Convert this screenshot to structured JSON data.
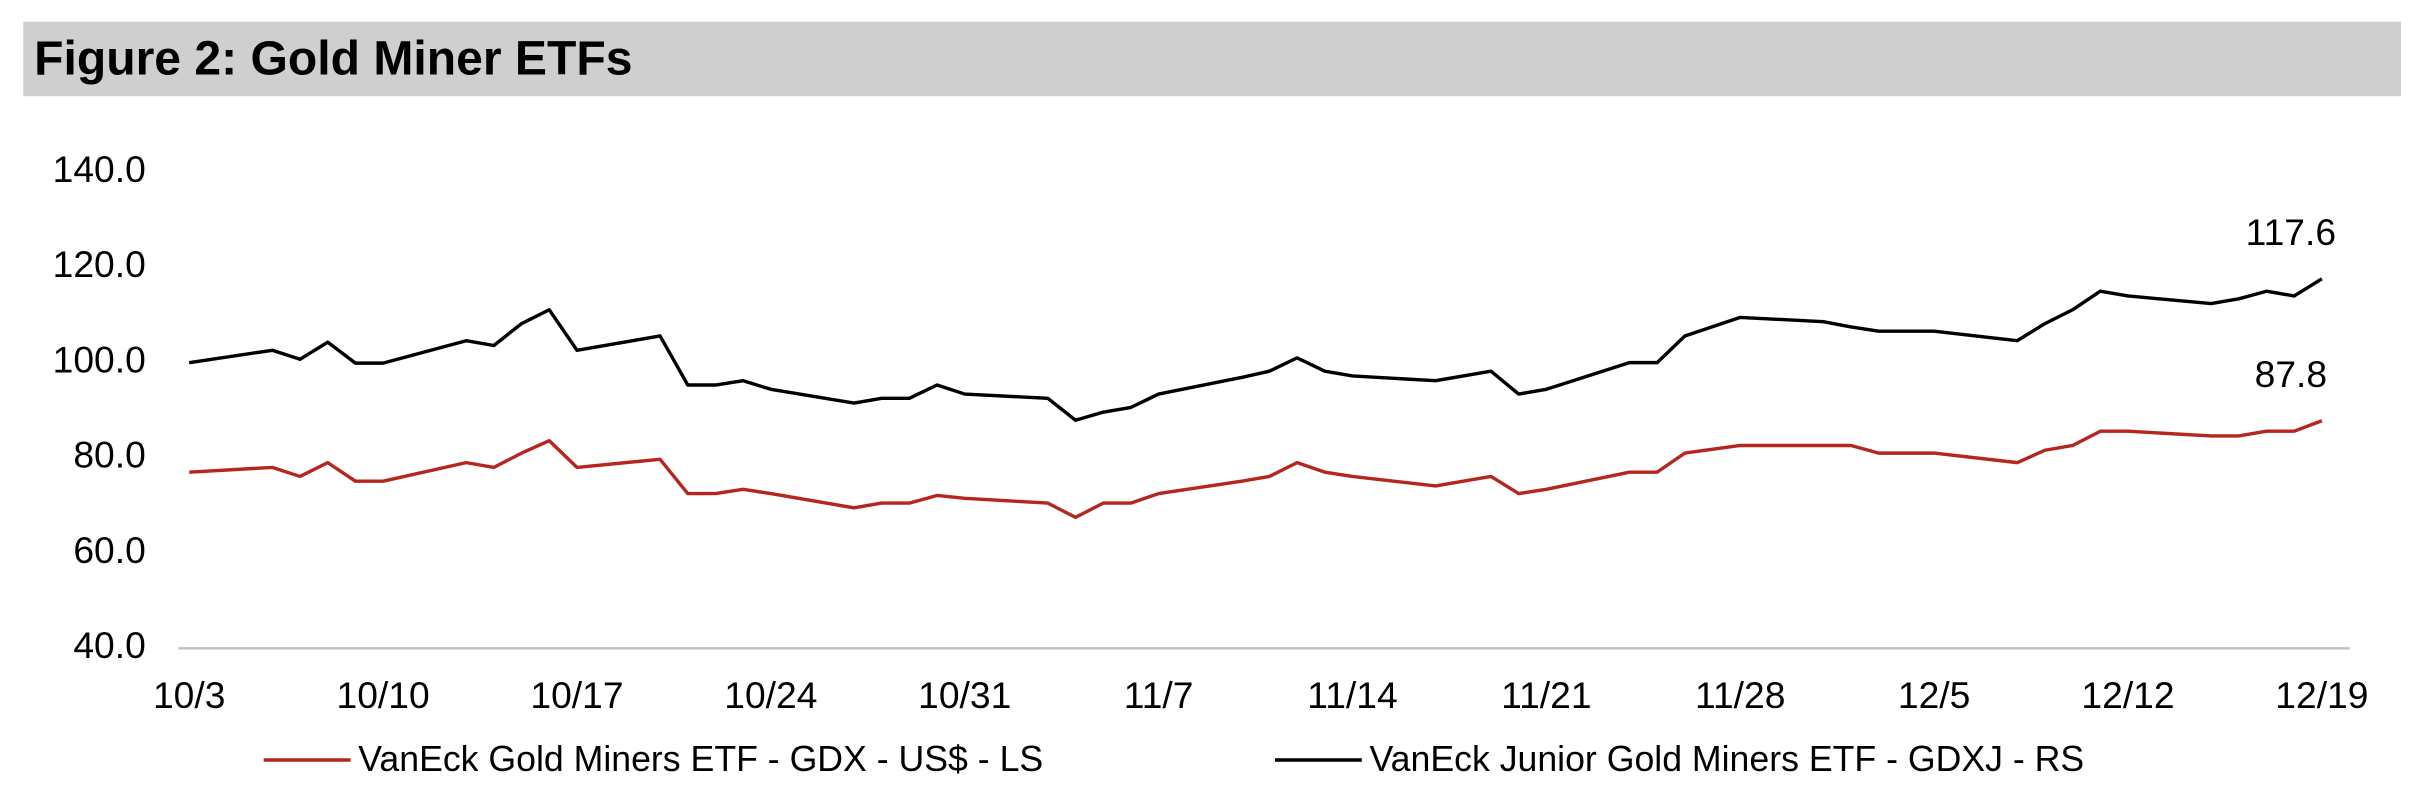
{
  "chart_data": {
    "type": "line",
    "title": "Figure 2: Gold Miner ETFs",
    "x": [
      "10/3",
      "10/6",
      "10/7",
      "10/8",
      "10/9",
      "10/10",
      "10/13",
      "10/14",
      "10/15",
      "10/16",
      "10/17",
      "10/20",
      "10/21",
      "10/22",
      "10/23",
      "10/24",
      "10/27",
      "10/28",
      "10/29",
      "10/30",
      "10/31",
      "11/3",
      "11/4",
      "11/5",
      "11/6",
      "11/7",
      "11/10",
      "11/11",
      "11/12",
      "11/13",
      "11/14",
      "11/17",
      "11/19",
      "11/20",
      "11/21",
      "11/24",
      "11/25",
      "11/26",
      "11/28",
      "12/1",
      "12/2",
      "12/3",
      "12/5",
      "12/8",
      "12/9",
      "12/10",
      "12/11",
      "12/12",
      "12/15",
      "12/16",
      "12/17",
      "12/18",
      "12/19"
    ],
    "series": [
      {
        "name": "VanEck Gold Miners ETF  - GDX  - US$ - LS",
        "color": "#b5261e",
        "values": [
          77.0,
          78.0,
          76.1,
          79.0,
          75.1,
          75.1,
          79.0,
          78.0,
          81.0,
          83.6,
          78.0,
          79.7,
          72.5,
          72.5,
          73.4,
          72.5,
          69.5,
          70.5,
          70.5,
          72.1,
          71.5,
          70.5,
          67.5,
          70.5,
          70.5,
          72.5,
          75.1,
          76.1,
          79.0,
          77.0,
          76.1,
          74.1,
          76.1,
          72.5,
          73.4,
          77.0,
          77.0,
          81.0,
          82.6,
          82.6,
          82.6,
          81.0,
          81.0,
          79.0,
          81.6,
          82.6,
          85.6,
          85.6,
          84.6,
          84.6,
          85.6,
          85.6,
          87.8
        ],
        "value_labels": [
          null,
          null,
          null,
          null,
          null,
          null,
          null,
          null,
          null,
          null,
          null,
          null,
          null,
          null,
          null,
          null,
          null,
          null,
          null,
          null,
          null,
          null,
          null,
          null,
          null,
          null,
          null,
          null,
          null,
          null,
          null,
          null,
          null,
          null,
          null,
          null,
          null,
          null,
          null,
          null,
          null,
          null,
          null,
          null,
          null,
          null,
          null,
          null,
          null,
          null,
          null,
          null,
          "87.8"
        ]
      },
      {
        "name": "VanEck Junior Gold Miners ETF - GDXJ - RS",
        "color": "#000000",
        "values": [
          100.0,
          102.6,
          100.7,
          104.3,
          99.9,
          99.9,
          104.6,
          103.6,
          108.2,
          111.1,
          102.6,
          105.6,
          95.3,
          95.3,
          96.2,
          94.4,
          91.5,
          92.5,
          92.5,
          95.3,
          93.4,
          92.5,
          87.9,
          89.6,
          90.6,
          93.4,
          96.9,
          98.2,
          101.0,
          98.2,
          97.2,
          96.2,
          98.2,
          93.4,
          94.4,
          100.0,
          100.0,
          105.6,
          109.5,
          108.6,
          107.5,
          106.6,
          106.6,
          104.6,
          108.2,
          111.1,
          115.0,
          114.0,
          112.4,
          113.4,
          115.0,
          114.0,
          117.6
        ],
        "value_labels": [
          null,
          null,
          null,
          null,
          null,
          null,
          null,
          null,
          null,
          null,
          null,
          null,
          null,
          null,
          null,
          null,
          null,
          null,
          null,
          null,
          null,
          null,
          null,
          null,
          null,
          null,
          null,
          null,
          null,
          null,
          null,
          null,
          null,
          null,
          null,
          null,
          null,
          null,
          null,
          null,
          null,
          null,
          null,
          null,
          null,
          null,
          null,
          null,
          null,
          null,
          null,
          null,
          "117.6"
        ]
      }
    ],
    "xticks": [
      "10/3",
      "10/10",
      "10/17",
      "10/24",
      "10/31",
      "11/7",
      "11/14",
      "11/21",
      "11/28",
      "12/5",
      "12/12",
      "12/19"
    ],
    "ylim": [
      40,
      140
    ],
    "yticks": [
      {
        "value": 40,
        "label": "40.0"
      },
      {
        "value": 60,
        "label": "60.0"
      },
      {
        "value": 80,
        "label": "80.0"
      },
      {
        "value": 100,
        "label": "100.0"
      },
      {
        "value": 120,
        "label": "120.0"
      },
      {
        "value": 140,
        "label": "140.0"
      }
    ],
    "grid": false,
    "legend": "bottom"
  }
}
